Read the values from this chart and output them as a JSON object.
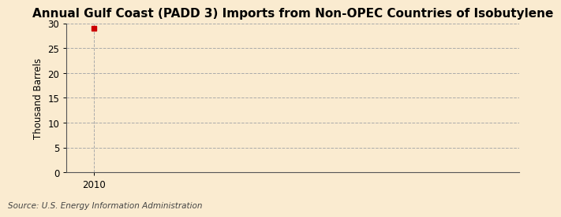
{
  "title": "Annual Gulf Coast (PADD 3) Imports from Non-OPEC Countries of Isobutylene",
  "ylabel": "Thousand Barrels",
  "source_text": "Source: U.S. Energy Information Administration",
  "x_data": [
    2010
  ],
  "y_data": [
    29.0
  ],
  "xlim": [
    2009.3,
    2021.0
  ],
  "ylim": [
    0,
    30
  ],
  "yticks": [
    0,
    5,
    10,
    15,
    20,
    25,
    30
  ],
  "xticks": [
    2010
  ],
  "background_color": "#faebd0",
  "plot_bg_color": "#faebd0",
  "grid_color": "#aaaaaa",
  "vline_color": "#aaaaaa",
  "marker_color": "#cc0000",
  "marker_size": 4,
  "title_fontsize": 11,
  "label_fontsize": 8.5,
  "tick_fontsize": 8.5,
  "source_fontsize": 7.5
}
